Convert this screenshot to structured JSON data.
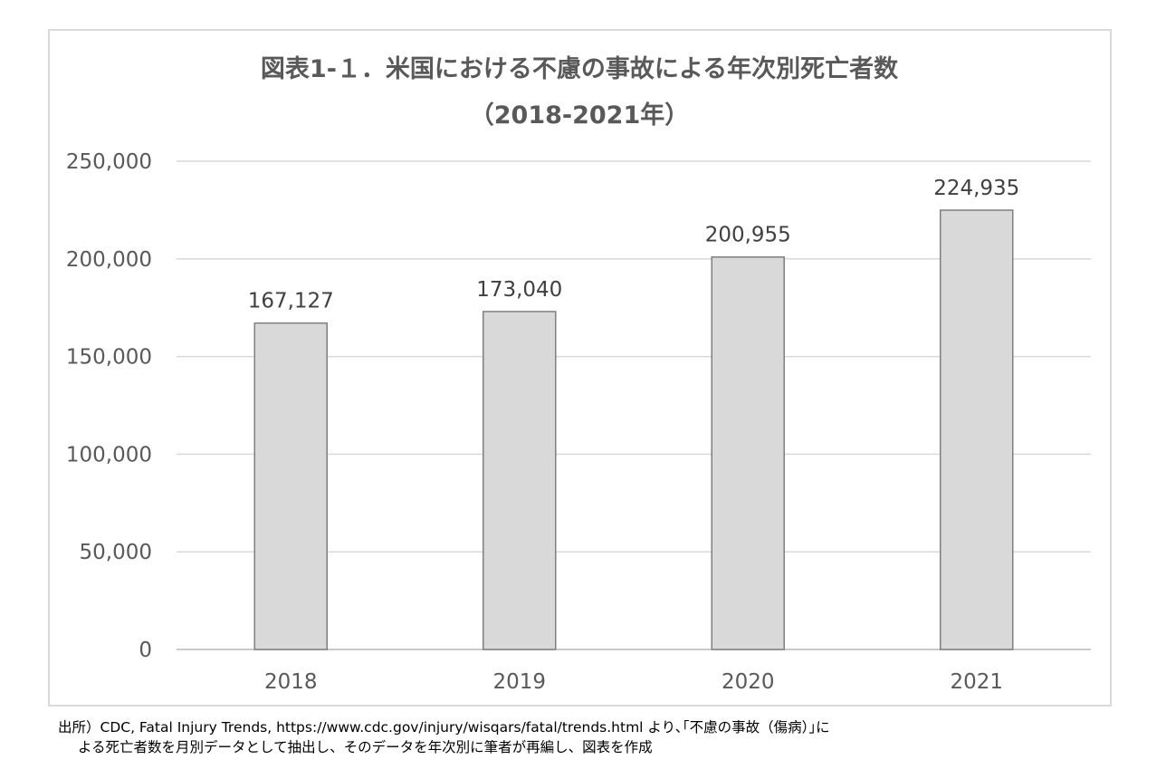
{
  "chart_data": {
    "type": "bar",
    "title_line1": "図表1-１．米国における不慮の事故による年次別死亡者数",
    "title_line2": "（2018-2021年）",
    "categories": [
      "2018",
      "2019",
      "2020",
      "2021"
    ],
    "values": [
      167127,
      173040,
      200955,
      224935
    ],
    "value_labels": [
      "167,127",
      "173,040",
      "200,955",
      "224,935"
    ],
    "yticks": [
      0,
      50000,
      100000,
      150000,
      200000,
      250000
    ],
    "ytick_labels": [
      "0",
      "50,000",
      "100,000",
      "150,000",
      "200,000",
      "250,000"
    ],
    "ylim": [
      0,
      250000
    ],
    "grid": true,
    "legend": "none",
    "bar_color": "#d9d9d9",
    "bar_edge_color": "#7f7f7f",
    "grid_color": "#d9d9d9"
  },
  "source": {
    "line1": "出所）CDC, Fatal Injury Trends, https://www.cdc.gov/injury/wisqars/fatal/trends.html より､｢不慮の事故（傷病）｣に",
    "line2": "よる死亡者数を月別データとして抽出し、そのデータを年次別に筆者が再編し、図表を作成"
  }
}
